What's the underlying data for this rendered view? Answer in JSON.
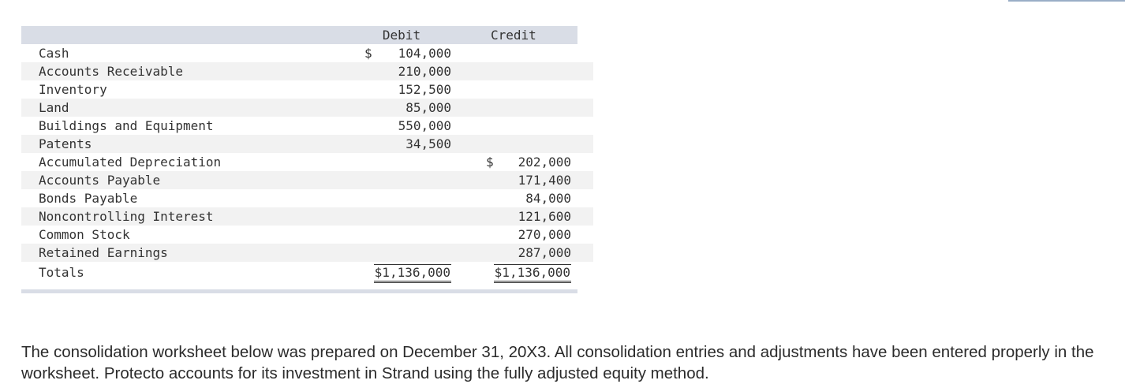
{
  "table": {
    "header": {
      "debit": "Debit",
      "credit": "Credit"
    },
    "rows": [
      {
        "account": "Cash",
        "debit_sym": "$",
        "debit": "104,000",
        "credit_sym": "",
        "credit": ""
      },
      {
        "account": "Accounts Receivable",
        "debit_sym": "",
        "debit": "210,000",
        "credit_sym": "",
        "credit": ""
      },
      {
        "account": "Inventory",
        "debit_sym": "",
        "debit": "152,500",
        "credit_sym": "",
        "credit": ""
      },
      {
        "account": "Land",
        "debit_sym": "",
        "debit": "85,000",
        "credit_sym": "",
        "credit": ""
      },
      {
        "account": "Buildings and Equipment",
        "debit_sym": "",
        "debit": "550,000",
        "credit_sym": "",
        "credit": ""
      },
      {
        "account": "Patents",
        "debit_sym": "",
        "debit": "34,500",
        "credit_sym": "",
        "credit": ""
      },
      {
        "account": "Accumulated Depreciation",
        "debit_sym": "",
        "debit": "",
        "credit_sym": "$",
        "credit": "202,000"
      },
      {
        "account": "Accounts Payable",
        "debit_sym": "",
        "debit": "",
        "credit_sym": "",
        "credit": "171,400"
      },
      {
        "account": "Bonds Payable",
        "debit_sym": "",
        "debit": "",
        "credit_sym": "",
        "credit": "84,000"
      },
      {
        "account": "Noncontrolling Interest",
        "debit_sym": "",
        "debit": "",
        "credit_sym": "",
        "credit": "121,600"
      },
      {
        "account": "Common Stock",
        "debit_sym": "",
        "debit": "",
        "credit_sym": "",
        "credit": "270,000"
      },
      {
        "account": "Retained Earnings",
        "debit_sym": "",
        "debit": "",
        "credit_sym": "",
        "credit": "287,000"
      }
    ],
    "totals": {
      "label": "Totals",
      "debit": "$1,136,000",
      "credit": "$1,136,000"
    }
  },
  "paragraph": "The consolidation worksheet below was prepared on December 31, 20X3. All consolidation entries and adjustments have been entered properly in the worksheet. Protecto accounts for its investment in Strand using the fully adjusted equity method."
}
